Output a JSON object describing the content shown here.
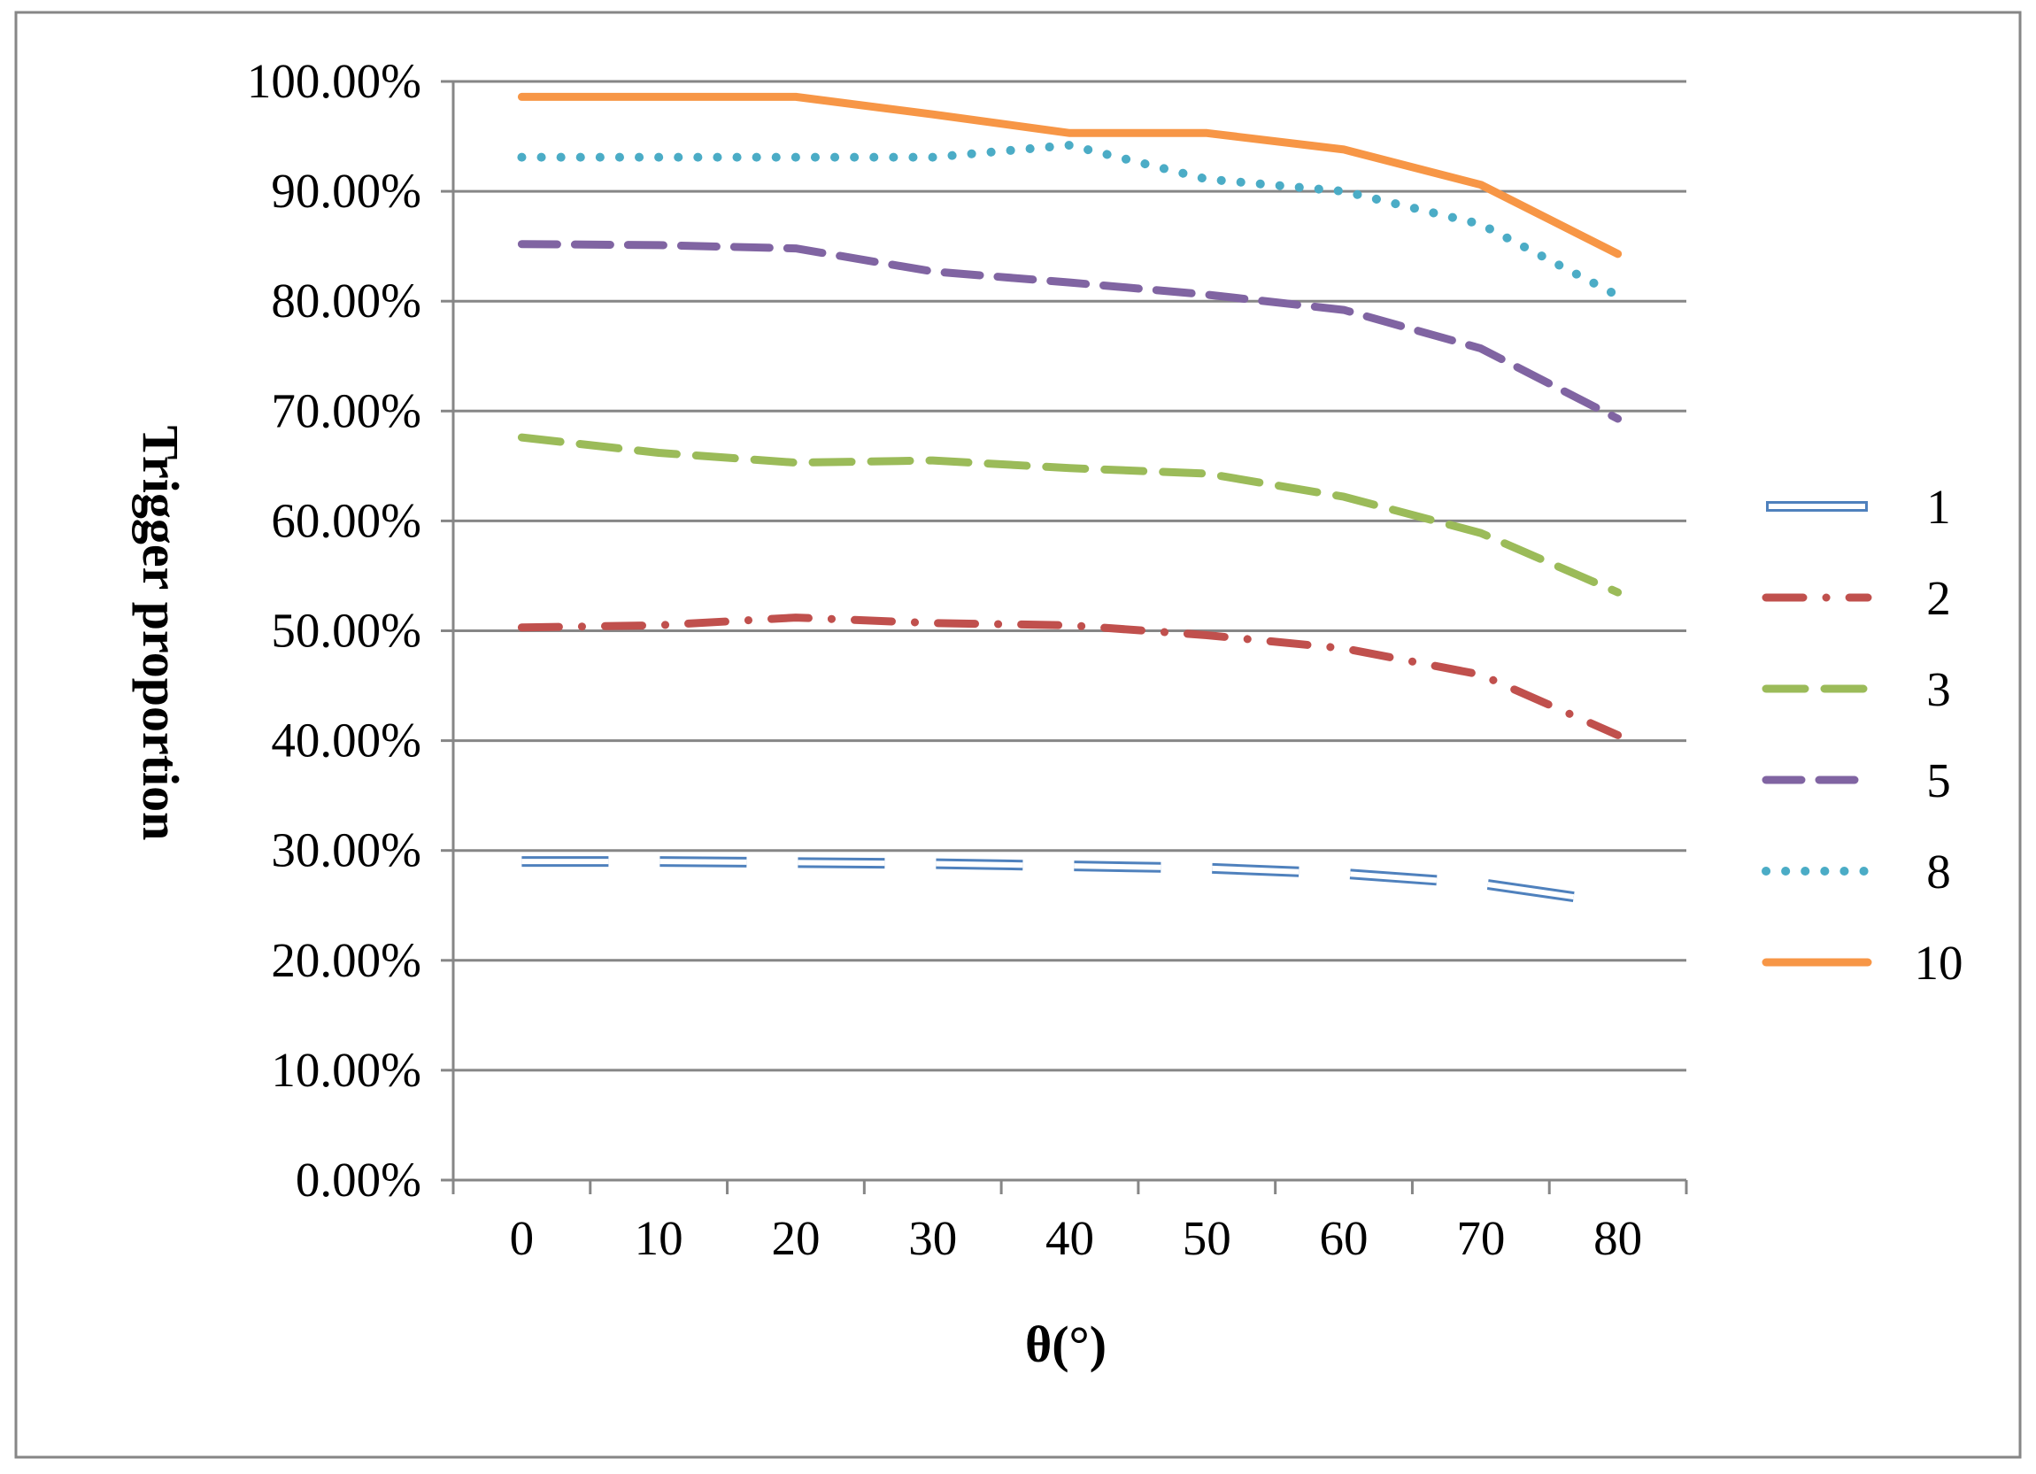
{
  "chart_data": {
    "type": "line",
    "title": "",
    "xlabel": "θ(°)",
    "ylabel": "Trigger proportion",
    "categories": [
      "0",
      "10",
      "20",
      "30",
      "40",
      "50",
      "60",
      "70",
      "80"
    ],
    "ylim": [
      0,
      1
    ],
    "yticks": [
      "0.00%",
      "10.00%",
      "20.00%",
      "30.00%",
      "40.00%",
      "50.00%",
      "60.00%",
      "70.00%",
      "80.00%",
      "90.00%",
      "100.00%"
    ],
    "grid": true,
    "legend_position": "right",
    "series": [
      {
        "name": "1",
        "style": "double",
        "color": "#4f81bd",
        "values": [
          0.29,
          0.29,
          0.289,
          0.288,
          0.286,
          0.284,
          0.279,
          0.27,
          0.252
        ]
      },
      {
        "name": "2",
        "style": "dashdot",
        "color": "#c0504d",
        "values": [
          0.503,
          0.505,
          0.512,
          0.507,
          0.505,
          0.496,
          0.484,
          0.46,
          0.405
        ]
      },
      {
        "name": "3",
        "style": "dash",
        "color": "#9bbb59",
        "values": [
          0.676,
          0.662,
          0.653,
          0.655,
          0.648,
          0.643,
          0.622,
          0.589,
          0.535
        ]
      },
      {
        "name": "5",
        "style": "longdash",
        "color": "#8064a2",
        "values": [
          0.852,
          0.851,
          0.848,
          0.827,
          0.817,
          0.806,
          0.792,
          0.757,
          0.693
        ]
      },
      {
        "name": "8",
        "style": "dot",
        "color": "#4bacc6",
        "values": [
          0.931,
          0.931,
          0.931,
          0.931,
          0.942,
          0.911,
          0.9,
          0.87,
          0.805
        ]
      },
      {
        "name": "10",
        "style": "solid",
        "color": "#f79646",
        "values": [
          0.986,
          0.986,
          0.986,
          0.97,
          0.953,
          0.953,
          0.938,
          0.906,
          0.843
        ]
      }
    ],
    "colors": {
      "grid": "#868686",
      "axis": "#868686",
      "frame": "#868686",
      "text": "#000000"
    }
  }
}
